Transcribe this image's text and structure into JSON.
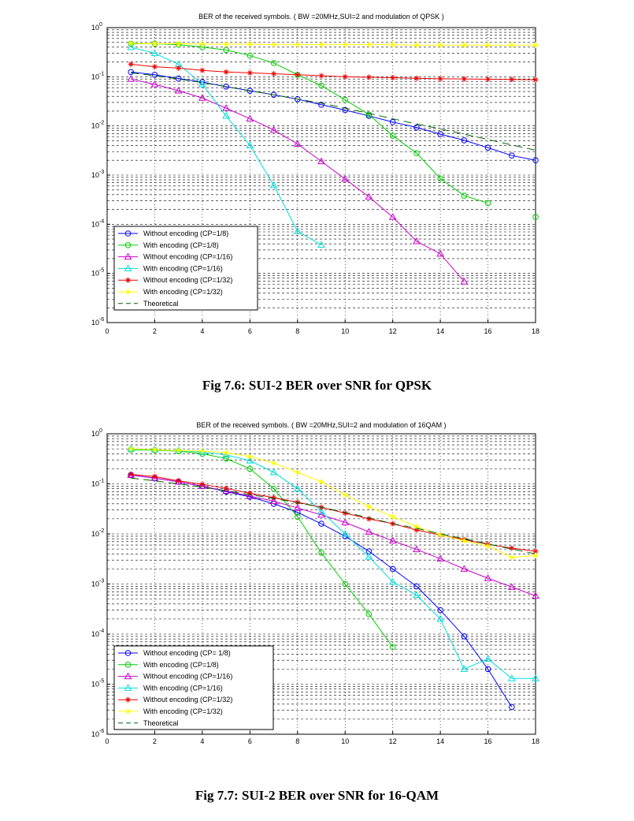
{
  "figures": [
    {
      "caption": "Fig 7.6: SUI-2 BER over SNR for QPSK",
      "title": "BER of the received symbols. ( BW =20MHz,SUI=2 and modulation of QPSK )"
    },
    {
      "caption": "Fig 7.7: SUI-2 BER over SNR for 16-QAM",
      "title": "BER of the received symbols. ( BW =20MHz,SUI=2 and modulation of 16QAM )"
    }
  ],
  "chart_data": [
    {
      "type": "line",
      "title": "BER of the received symbols. ( BW =20MHz,SUI=2 and modulation of QPSK )",
      "xlabel": "",
      "ylabel": "",
      "xlim": [
        0,
        18
      ],
      "ylim": [
        1e-06,
        1
      ],
      "yscale": "log",
      "grid": true,
      "legend_position": "bottom-left",
      "x_ticks": [
        "0",
        "2",
        "4",
        "6",
        "8",
        "10",
        "12",
        "14",
        "16",
        "18"
      ],
      "y_ticks": [
        {
          "base": "10",
          "exp": "0"
        },
        {
          "base": "10",
          "exp": "-1"
        },
        {
          "base": "10",
          "exp": "-2"
        },
        {
          "base": "10",
          "exp": "-3"
        },
        {
          "base": "10",
          "exp": "-4"
        },
        {
          "base": "10",
          "exp": "-5"
        },
        {
          "base": "10",
          "exp": "-6"
        }
      ],
      "series": [
        {
          "name": "Without encoding  (CP=1/8)",
          "color": "#0000ff",
          "marker": "circle",
          "x": [
            1,
            2,
            3,
            4,
            5,
            6,
            7,
            8,
            9,
            10,
            11,
            12,
            13,
            14,
            15,
            16,
            17,
            18
          ],
          "y": [
            0.125,
            0.11,
            0.092,
            0.078,
            0.063,
            0.052,
            0.043,
            0.035,
            0.027,
            0.021,
            0.016,
            0.012,
            0.0093,
            0.0068,
            0.0051,
            0.0036,
            0.0025,
            0.002
          ]
        },
        {
          "name": "With encoding  (CP=1/8)",
          "color": "#00cc00",
          "marker": "circle",
          "x": [
            1,
            2,
            3,
            4,
            5,
            6,
            7,
            8,
            9,
            10,
            11,
            12,
            13,
            14,
            15,
            16,
            18
          ],
          "y": [
            0.47,
            0.47,
            0.45,
            0.4,
            0.35,
            0.27,
            0.19,
            0.11,
            0.066,
            0.034,
            0.017,
            0.0063,
            0.0028,
            0.00085,
            0.00038,
            0.00027,
            0.00014
          ]
        },
        {
          "name": "Without encoding  (CP=1/16)",
          "color": "#cc00cc",
          "marker": "triangle",
          "x": [
            1,
            2,
            3,
            4,
            5,
            6,
            7,
            8,
            9,
            10,
            11,
            12,
            13,
            14,
            15
          ],
          "y": [
            0.09,
            0.07,
            0.052,
            0.037,
            0.023,
            0.014,
            0.0083,
            0.0043,
            0.0019,
            0.00083,
            0.00036,
            0.00014,
            4.5e-05,
            2.5e-05,
            6.8e-06
          ]
        },
        {
          "name": "With encoding  (CP=1/16)",
          "color": "#00dddd",
          "marker": "triangle",
          "x": [
            1,
            2,
            3,
            4,
            5,
            6,
            7,
            8,
            9
          ],
          "y": [
            0.4,
            0.3,
            0.18,
            0.07,
            0.016,
            0.004,
            0.00062,
            7.2e-05,
            3.8e-05
          ]
        },
        {
          "name": "Without encoding  (CP=1/32)",
          "color": "#ee0000",
          "marker": "star",
          "x": [
            1,
            2,
            3,
            4,
            5,
            6,
            7,
            8,
            9,
            10,
            11,
            12,
            13,
            14,
            15,
            16,
            17,
            18
          ],
          "y": [
            0.18,
            0.16,
            0.15,
            0.135,
            0.125,
            0.12,
            0.115,
            0.11,
            0.105,
            0.1,
            0.098,
            0.096,
            0.093,
            0.091,
            0.09,
            0.089,
            0.088,
            0.087
          ]
        },
        {
          "name": "With encoding  (CP=1/32)",
          "color": "#ffff00",
          "marker": "star",
          "x": [
            1,
            2,
            3,
            4,
            5,
            6,
            7,
            8,
            9,
            10,
            11,
            12,
            13,
            14,
            15,
            16,
            17,
            18
          ],
          "y": [
            0.48,
            0.47,
            0.47,
            0.46,
            0.46,
            0.46,
            0.45,
            0.45,
            0.45,
            0.45,
            0.45,
            0.45,
            0.44,
            0.44,
            0.44,
            0.44,
            0.44,
            0.44
          ]
        },
        {
          "name": "Theoretical",
          "color": "#006600",
          "marker": "dash",
          "x": [
            1,
            2,
            3,
            4,
            5,
            6,
            7,
            8,
            9,
            10,
            11,
            12,
            13,
            14,
            15,
            16,
            17,
            18
          ],
          "y": [
            0.12,
            0.105,
            0.09,
            0.076,
            0.063,
            0.052,
            0.043,
            0.035,
            0.029,
            0.023,
            0.018,
            0.014,
            0.011,
            0.0087,
            0.0068,
            0.0053,
            0.0041,
            0.0032
          ]
        }
      ]
    },
    {
      "type": "line",
      "title": "BER of the received symbols. ( BW =20MHz,SUI=2 and modulation of 16QAM )",
      "xlabel": "",
      "ylabel": "",
      "xlim": [
        0,
        18
      ],
      "ylim": [
        1e-06,
        1
      ],
      "yscale": "log",
      "grid": true,
      "legend_position": "bottom-left",
      "x_ticks": [
        "0",
        "2",
        "4",
        "6",
        "8",
        "10",
        "12",
        "14",
        "16",
        "18"
      ],
      "y_ticks": [
        {
          "base": "10",
          "exp": "0"
        },
        {
          "base": "10",
          "exp": "-1"
        },
        {
          "base": "10",
          "exp": "-2"
        },
        {
          "base": "10",
          "exp": "-3"
        },
        {
          "base": "10",
          "exp": "-4"
        },
        {
          "base": "10",
          "exp": "-5"
        },
        {
          "base": "10",
          "exp": "-6"
        }
      ],
      "series": [
        {
          "name": "Without encoding (CP= 1/8)",
          "color": "#0000ff",
          "marker": "circle",
          "x": [
            1,
            2,
            3,
            4,
            5,
            6,
            7,
            8,
            9,
            10,
            11,
            12,
            13,
            14,
            15,
            16,
            17
          ],
          "y": [
            0.15,
            0.13,
            0.11,
            0.09,
            0.07,
            0.055,
            0.04,
            0.027,
            0.016,
            0.009,
            0.0045,
            0.002,
            0.0009,
            0.0003,
            9e-05,
            2e-05,
            3.5e-06
          ]
        },
        {
          "name": "With encoding (CP=1/8)",
          "color": "#00cc00",
          "marker": "circle",
          "x": [
            1,
            2,
            3,
            4,
            5,
            6,
            7,
            8,
            9,
            10,
            11,
            12
          ],
          "y": [
            0.48,
            0.47,
            0.45,
            0.4,
            0.32,
            0.2,
            0.08,
            0.022,
            0.0042,
            0.001,
            0.00025,
            5.5e-05
          ]
        },
        {
          "name": "Without encoding (CP=1/16)",
          "color": "#cc00cc",
          "marker": "triangle",
          "x": [
            1,
            2,
            3,
            4,
            5,
            6,
            7,
            8,
            9,
            10,
            11,
            12,
            13,
            14,
            15,
            16,
            17,
            18
          ],
          "y": [
            0.15,
            0.13,
            0.11,
            0.09,
            0.072,
            0.057,
            0.045,
            0.033,
            0.024,
            0.017,
            0.011,
            0.0073,
            0.0049,
            0.0032,
            0.002,
            0.0013,
            0.00087,
            0.00058
          ]
        },
        {
          "name": "With encoding (CP=1/16)",
          "color": "#00dddd",
          "marker": "triangle",
          "x": [
            1,
            2,
            3,
            4,
            5,
            6,
            7,
            8,
            9,
            10,
            11,
            12,
            13,
            14,
            15,
            16,
            17,
            18
          ],
          "y": [
            0.5,
            0.48,
            0.46,
            0.43,
            0.38,
            0.29,
            0.17,
            0.08,
            0.028,
            0.01,
            0.0035,
            0.0011,
            0.0006,
            0.0002,
            2e-05,
            3.2e-05,
            1.3e-05,
            1.3e-05
          ]
        },
        {
          "name": "Without encoding (CP=1/32)",
          "color": "#ee0000",
          "marker": "star",
          "x": [
            1,
            2,
            3,
            4,
            5,
            6,
            7,
            8,
            9,
            10,
            11,
            12,
            13,
            14,
            15,
            16,
            17,
            18
          ],
          "y": [
            0.155,
            0.14,
            0.115,
            0.098,
            0.081,
            0.065,
            0.053,
            0.043,
            0.034,
            0.026,
            0.02,
            0.016,
            0.012,
            0.0095,
            0.0077,
            0.0062,
            0.0052,
            0.0045
          ]
        },
        {
          "name": "With encoding (CP=1/32)",
          "color": "#ffff00",
          "marker": "star",
          "x": [
            1,
            2,
            3,
            4,
            5,
            6,
            7,
            8,
            9,
            10,
            11,
            12,
            13,
            14,
            15,
            16,
            17,
            18
          ],
          "y": [
            0.5,
            0.48,
            0.46,
            0.45,
            0.42,
            0.35,
            0.26,
            0.17,
            0.11,
            0.06,
            0.035,
            0.022,
            0.014,
            0.0096,
            0.0073,
            0.0057,
            0.0034,
            0.0037
          ]
        },
        {
          "name": "Theoretical",
          "color": "#006600",
          "marker": "dash",
          "x": [
            1,
            2,
            3,
            4,
            5,
            6,
            7,
            8,
            9,
            10,
            11,
            12,
            13,
            14,
            15,
            16,
            17,
            18
          ],
          "y": [
            0.13,
            0.115,
            0.1,
            0.086,
            0.073,
            0.061,
            0.051,
            0.042,
            0.034,
            0.027,
            0.021,
            0.016,
            0.013,
            0.01,
            0.008,
            0.0063,
            0.005,
            0.004
          ]
        }
      ]
    }
  ]
}
